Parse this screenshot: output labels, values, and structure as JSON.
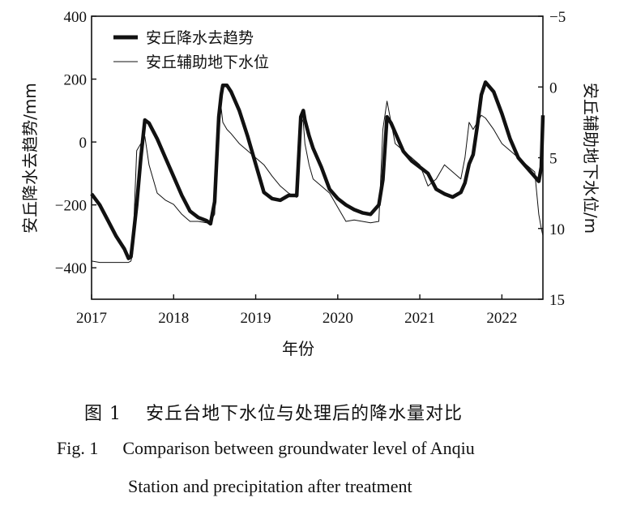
{
  "chart_data": {
    "type": "line",
    "title": "",
    "xlabel": "年份",
    "ylabel_left": "安丘降水去趋势/mm",
    "ylabel_right": "安丘辅助地下水位/m",
    "xlim": [
      2017,
      2022.5
    ],
    "ylim_left": [
      -500,
      400
    ],
    "ylim_right": [
      -5,
      15
    ],
    "right_axis_inverted": true,
    "x_ticks": [
      "2017",
      "2018",
      "2019",
      "2020",
      "2021",
      "2022"
    ],
    "y_left_ticks": [
      "400",
      "200",
      "0",
      "−200",
      "−400"
    ],
    "y_right_ticks": [
      "−5",
      "0",
      "5",
      "10",
      "15"
    ],
    "grid": false,
    "legend_position": "top-left",
    "series": [
      {
        "name": "安丘降水去趋势",
        "axis": "left",
        "style": "thick",
        "x": [
          2017.0,
          2017.1,
          2017.2,
          2017.3,
          2017.4,
          2017.45,
          2017.48,
          2017.5,
          2017.55,
          2017.6,
          2017.65,
          2017.7,
          2017.8,
          2017.9,
          2018.0,
          2018.1,
          2018.2,
          2018.3,
          2018.4,
          2018.45,
          2018.5,
          2018.55,
          2018.58,
          2018.6,
          2018.65,
          2018.7,
          2018.8,
          2018.9,
          2019.0,
          2019.1,
          2019.2,
          2019.3,
          2019.4,
          2019.5,
          2019.55,
          2019.58,
          2019.6,
          2019.65,
          2019.7,
          2019.8,
          2019.9,
          2020.0,
          2020.1,
          2020.2,
          2020.3,
          2020.4,
          2020.5,
          2020.55,
          2020.6,
          2020.65,
          2020.7,
          2020.8,
          2020.9,
          2021.0,
          2021.1,
          2021.2,
          2021.3,
          2021.4,
          2021.5,
          2021.55,
          2021.6,
          2021.65,
          2021.7,
          2021.75,
          2021.8,
          2021.9,
          2022.0,
          2022.1,
          2022.2,
          2022.3,
          2022.4,
          2022.45,
          2022.48,
          2022.5
        ],
        "y": [
          -165,
          -200,
          -250,
          -300,
          -340,
          -370,
          -365,
          -320,
          -200,
          -50,
          70,
          60,
          10,
          -50,
          -110,
          -170,
          -220,
          -240,
          -250,
          -260,
          -190,
          80,
          150,
          180,
          180,
          160,
          100,
          20,
          -70,
          -160,
          -180,
          -185,
          -170,
          -170,
          80,
          100,
          70,
          20,
          -20,
          -80,
          -150,
          -180,
          -200,
          -215,
          -225,
          -230,
          -200,
          -120,
          80,
          60,
          30,
          -30,
          -60,
          -80,
          -100,
          -150,
          -165,
          -175,
          -160,
          -130,
          -70,
          -40,
          50,
          150,
          190,
          160,
          90,
          10,
          -50,
          -80,
          -110,
          -125,
          -80,
          85
        ]
      },
      {
        "name": "安丘辅助地下水位",
        "axis": "right",
        "style": "thin",
        "x": [
          2017.0,
          2017.1,
          2017.2,
          2017.3,
          2017.4,
          2017.45,
          2017.48,
          2017.5,
          2017.55,
          2017.6,
          2017.65,
          2017.7,
          2017.8,
          2017.9,
          2018.0,
          2018.1,
          2018.2,
          2018.3,
          2018.4,
          2018.45,
          2018.5,
          2018.55,
          2018.58,
          2018.6,
          2018.65,
          2018.7,
          2018.8,
          2018.9,
          2019.0,
          2019.1,
          2019.2,
          2019.3,
          2019.4,
          2019.5,
          2019.55,
          2019.58,
          2019.6,
          2019.65,
          2019.7,
          2019.8,
          2019.9,
          2020.0,
          2020.1,
          2020.2,
          2020.3,
          2020.4,
          2020.5,
          2020.55,
          2020.6,
          2020.65,
          2020.7,
          2020.8,
          2020.9,
          2021.0,
          2021.1,
          2021.2,
          2021.3,
          2021.4,
          2021.5,
          2021.55,
          2021.6,
          2021.65,
          2021.7,
          2021.75,
          2021.8,
          2021.9,
          2022.0,
          2022.1,
          2022.2,
          2022.3,
          2022.4,
          2022.45,
          2022.48,
          2022.5
        ],
        "y": [
          12.3,
          12.4,
          12.4,
          12.4,
          12.4,
          12.4,
          12.3,
          11.8,
          4.5,
          4.0,
          3.5,
          5.5,
          7.5,
          8.0,
          8.3,
          9.0,
          9.5,
          9.5,
          9.6,
          9.5,
          9.0,
          3.0,
          1.5,
          2.5,
          3.0,
          3.3,
          4.0,
          4.5,
          5.0,
          5.5,
          6.3,
          7.0,
          7.5,
          7.8,
          2.0,
          2.5,
          4.0,
          5.5,
          6.5,
          7.0,
          7.5,
          8.5,
          9.5,
          9.4,
          9.5,
          9.6,
          9.5,
          3.0,
          1.0,
          2.5,
          4.0,
          4.5,
          5.0,
          5.5,
          7.0,
          6.5,
          5.5,
          6.0,
          6.5,
          5.0,
          2.5,
          3.0,
          2.5,
          2.0,
          2.2,
          3.0,
          4.0,
          4.5,
          5.0,
          5.5,
          6.0,
          9.0,
          10.0,
          10.5
        ]
      }
    ]
  },
  "caption": {
    "cn_label": "图 1",
    "cn_text": "安丘台地下水位与处理后的降水量对比",
    "en_label": "Fig. 1",
    "en_line1": "Comparison between groundwater level of Anqiu",
    "en_line2": "Station and precipitation after treatment"
  }
}
